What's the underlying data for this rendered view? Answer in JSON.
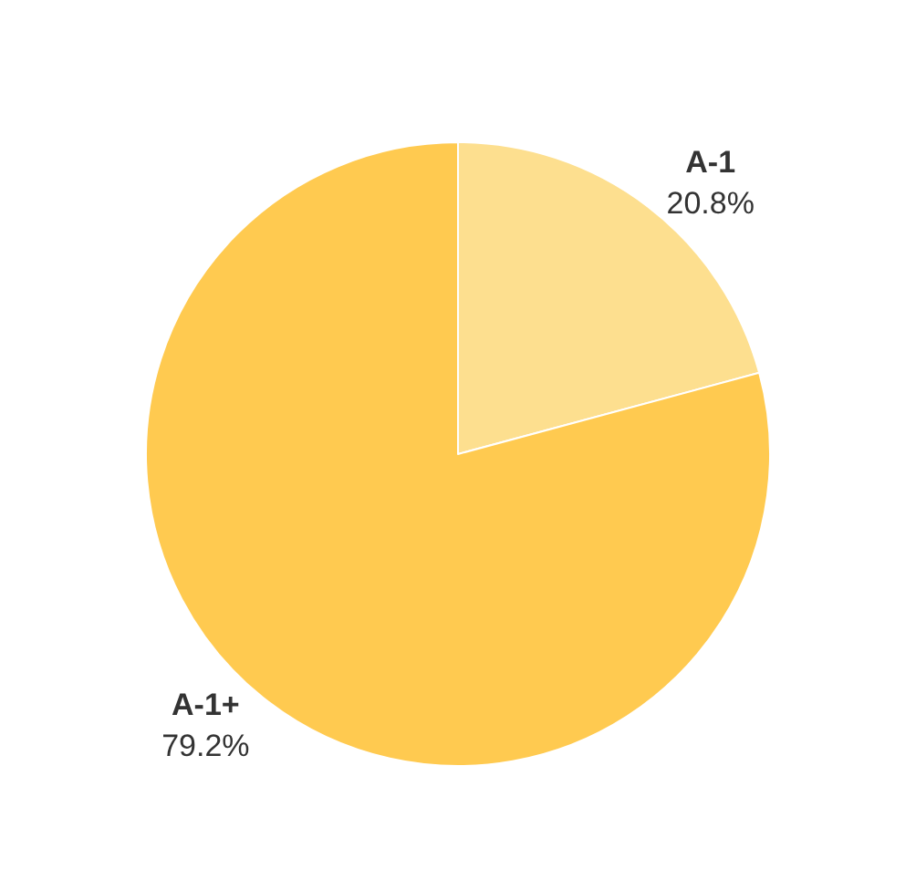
{
  "chart_data": {
    "type": "pie",
    "categories": [
      "A-1",
      "A-1+"
    ],
    "values": [
      20.8,
      79.2
    ],
    "value_labels": [
      "20.8%",
      "79.2%"
    ],
    "colors": [
      "#fddf8f",
      "#ffca50"
    ]
  }
}
